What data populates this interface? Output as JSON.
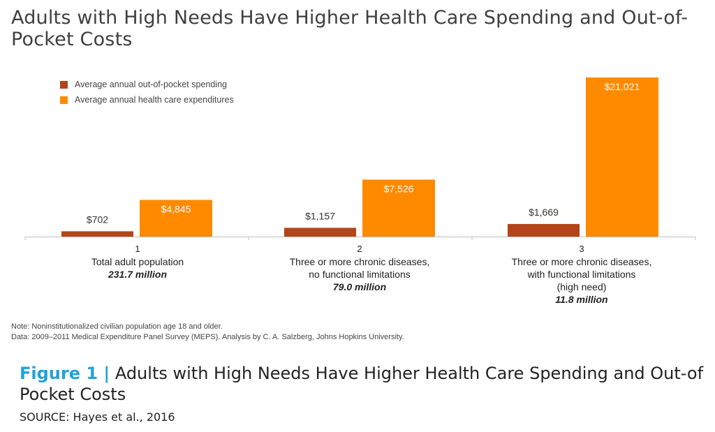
{
  "title": "Adults with High Needs Have Higher Health Care Spending and Out-of-Pocket Costs",
  "colors": {
    "oop": "#b5441a",
    "total": "#ff8a00",
    "caption_label": "#1fa3d8"
  },
  "chart_data": {
    "type": "bar",
    "categories": [
      "1",
      "2",
      "3"
    ],
    "category_descriptions": [
      {
        "num": "1",
        "lines": [
          "Total adult population"
        ],
        "pop": "231.7 million"
      },
      {
        "num": "2",
        "lines": [
          "Three or more chronic diseases,",
          "no functional limitations"
        ],
        "pop": "79.0 million"
      },
      {
        "num": "3",
        "lines": [
          "Three or more chronic diseases,",
          "with functional limitations",
          "(high need)"
        ],
        "pop": "11.8 million"
      }
    ],
    "series": [
      {
        "name": "Average annual out-of-pocket spending",
        "values": [
          702,
          1157,
          1669
        ],
        "labels": [
          "$702",
          "$1,157",
          "$1,669"
        ]
      },
      {
        "name": "Average annual health care expenditures",
        "values": [
          4845,
          7526,
          21021
        ],
        "labels": [
          "$4,845",
          "$7,526",
          "$21,021"
        ]
      }
    ],
    "legend_position": "top-left",
    "grid": false
  },
  "note": "Note: Noninstitutionalized civilian population age 18 and older.",
  "data_source": "Data: 2009–2011 Medical Expenditure Panel Survey (MEPS). Analysis by C. A. Salzberg, Johns Hopkins University.",
  "caption": {
    "label": "Figure 1 |",
    "text": "Adults with High Needs Have Higher Health Care Spending and Out-of Pocket Costs"
  },
  "source": "SOURCE: Hayes et al., 2016"
}
